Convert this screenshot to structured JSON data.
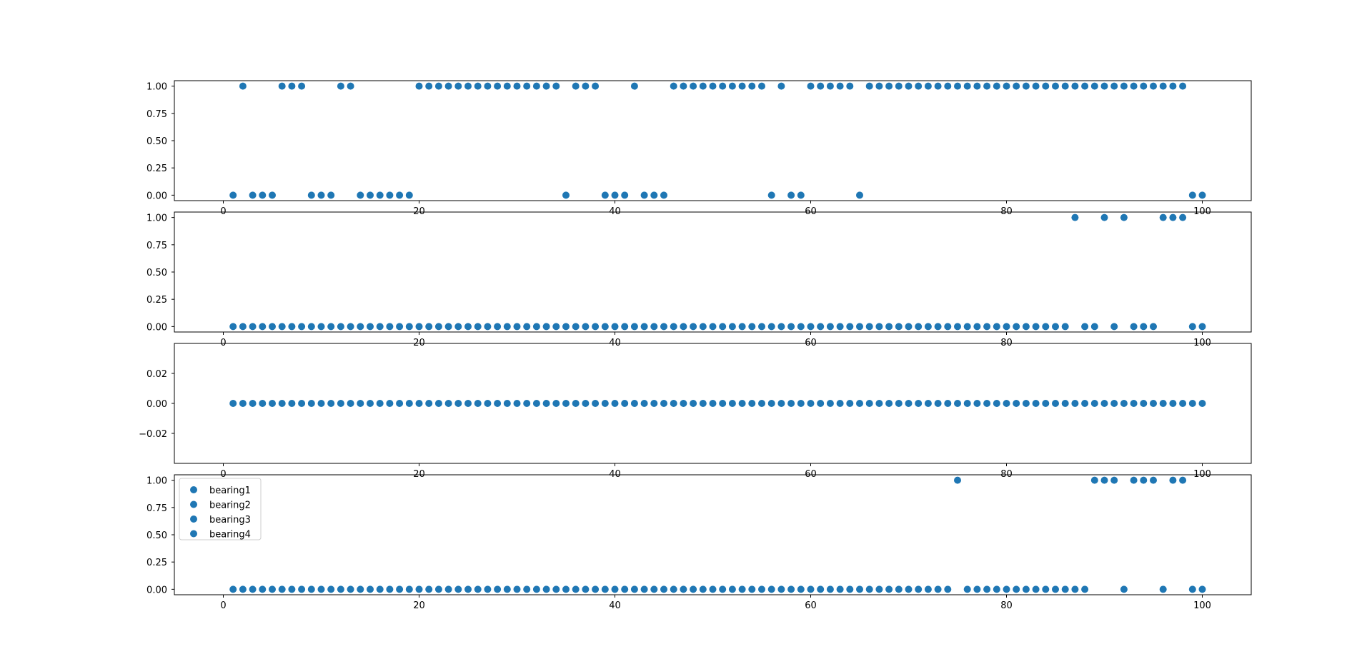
{
  "figure": {
    "background": "#ffffff",
    "marker_color": "#1f77b4"
  },
  "legend": {
    "placement": "upper-left of bottom panel",
    "entries": [
      "bearing1",
      "bearing2",
      "bearing3",
      "bearing4"
    ]
  },
  "chart_data": [
    {
      "type": "scatter",
      "title": "",
      "xlabel": "",
      "ylabel": "",
      "xlim": [
        -5,
        105
      ],
      "ylim": [
        -0.05,
        1.05
      ],
      "x_ticks": [
        0,
        20,
        40,
        60,
        80,
        100
      ],
      "x_tick_labels": [
        "0",
        "20",
        "40",
        "60",
        "80",
        "100"
      ],
      "y_ticks": [
        0,
        0.25,
        0.5,
        0.75,
        1
      ],
      "y_tick_labels": [
        "0.00",
        "0.25",
        "0.50",
        "0.75",
        "1.00"
      ],
      "grid": false,
      "series": [
        {
          "name": "bearing1",
          "x": [
            1,
            2,
            3,
            4,
            5,
            6,
            7,
            8,
            9,
            10,
            11,
            12,
            13,
            14,
            15,
            16,
            17,
            18,
            19,
            20,
            21,
            22,
            23,
            24,
            25,
            26,
            27,
            28,
            29,
            30,
            31,
            32,
            33,
            34,
            35,
            36,
            37,
            38,
            39,
            40,
            41,
            42,
            43,
            44,
            45,
            46,
            47,
            48,
            49,
            50,
            51,
            52,
            53,
            54,
            55,
            56,
            57,
            58,
            59,
            60,
            61,
            62,
            63,
            64,
            65,
            66,
            67,
            68,
            69,
            70,
            71,
            72,
            73,
            74,
            75,
            76,
            77,
            78,
            79,
            80,
            81,
            82,
            83,
            84,
            85,
            86,
            87,
            88,
            89,
            90,
            91,
            92,
            93,
            94,
            95,
            96,
            97,
            98,
            99,
            100
          ],
          "y": [
            0,
            1,
            0,
            0,
            0,
            1,
            1,
            1,
            0,
            0,
            0,
            1,
            1,
            0,
            0,
            0,
            0,
            0,
            0,
            1,
            1,
            1,
            1,
            1,
            1,
            1,
            1,
            1,
            1,
            1,
            1,
            1,
            1,
            1,
            0,
            1,
            1,
            1,
            0,
            0,
            0,
            1,
            0,
            0,
            0,
            1,
            1,
            1,
            1,
            1,
            1,
            1,
            1,
            1,
            1,
            0,
            1,
            0,
            0,
            1,
            1,
            1,
            1,
            1,
            0,
            1,
            1,
            1,
            1,
            1,
            1,
            1,
            1,
            1,
            1,
            1,
            1,
            1,
            1,
            1,
            1,
            1,
            1,
            1,
            1,
            1,
            1,
            1,
            1,
            1,
            1,
            1,
            1,
            1,
            1,
            1,
            1,
            1,
            0,
            0
          ]
        }
      ]
    },
    {
      "type": "scatter",
      "title": "",
      "xlabel": "",
      "ylabel": "",
      "xlim": [
        -5,
        105
      ],
      "ylim": [
        -0.05,
        1.05
      ],
      "x_ticks": [
        0,
        20,
        40,
        60,
        80,
        100
      ],
      "x_tick_labels": [
        "0",
        "20",
        "40",
        "60",
        "80",
        "100"
      ],
      "y_ticks": [
        0,
        0.25,
        0.5,
        0.75,
        1
      ],
      "y_tick_labels": [
        "0.00",
        "0.25",
        "0.50",
        "0.75",
        "1.00"
      ],
      "grid": false,
      "series": [
        {
          "name": "bearing2",
          "x": [
            1,
            2,
            3,
            4,
            5,
            6,
            7,
            8,
            9,
            10,
            11,
            12,
            13,
            14,
            15,
            16,
            17,
            18,
            19,
            20,
            21,
            22,
            23,
            24,
            25,
            26,
            27,
            28,
            29,
            30,
            31,
            32,
            33,
            34,
            35,
            36,
            37,
            38,
            39,
            40,
            41,
            42,
            43,
            44,
            45,
            46,
            47,
            48,
            49,
            50,
            51,
            52,
            53,
            54,
            55,
            56,
            57,
            58,
            59,
            60,
            61,
            62,
            63,
            64,
            65,
            66,
            67,
            68,
            69,
            70,
            71,
            72,
            73,
            74,
            75,
            76,
            77,
            78,
            79,
            80,
            81,
            82,
            83,
            84,
            85,
            86,
            87,
            88,
            89,
            90,
            91,
            92,
            93,
            94,
            95,
            96,
            97,
            98,
            99,
            100
          ],
          "y": [
            0,
            0,
            0,
            0,
            0,
            0,
            0,
            0,
            0,
            0,
            0,
            0,
            0,
            0,
            0,
            0,
            0,
            0,
            0,
            0,
            0,
            0,
            0,
            0,
            0,
            0,
            0,
            0,
            0,
            0,
            0,
            0,
            0,
            0,
            0,
            0,
            0,
            0,
            0,
            0,
            0,
            0,
            0,
            0,
            0,
            0,
            0,
            0,
            0,
            0,
            0,
            0,
            0,
            0,
            0,
            0,
            0,
            0,
            0,
            0,
            0,
            0,
            0,
            0,
            0,
            0,
            0,
            0,
            0,
            0,
            0,
            0,
            0,
            0,
            0,
            0,
            0,
            0,
            0,
            0,
            0,
            0,
            0,
            0,
            0,
            0,
            1,
            0,
            0,
            1,
            0,
            1,
            0,
            0,
            0,
            1,
            1,
            1,
            0,
            0
          ]
        }
      ]
    },
    {
      "type": "scatter",
      "title": "",
      "xlabel": "",
      "ylabel": "",
      "xlim": [
        -5,
        105
      ],
      "ylim": [
        -0.04,
        0.04
      ],
      "x_ticks": [
        0,
        20,
        40,
        60,
        80,
        100
      ],
      "x_tick_labels": [
        "0",
        "20",
        "40",
        "60",
        "80",
        "100"
      ],
      "y_ticks": [
        -0.02,
        0,
        0.02
      ],
      "y_tick_labels": [
        "−0.02",
        "0.00",
        "0.02"
      ],
      "grid": false,
      "series": [
        {
          "name": "bearing3",
          "x": [
            1,
            2,
            3,
            4,
            5,
            6,
            7,
            8,
            9,
            10,
            11,
            12,
            13,
            14,
            15,
            16,
            17,
            18,
            19,
            20,
            21,
            22,
            23,
            24,
            25,
            26,
            27,
            28,
            29,
            30,
            31,
            32,
            33,
            34,
            35,
            36,
            37,
            38,
            39,
            40,
            41,
            42,
            43,
            44,
            45,
            46,
            47,
            48,
            49,
            50,
            51,
            52,
            53,
            54,
            55,
            56,
            57,
            58,
            59,
            60,
            61,
            62,
            63,
            64,
            65,
            66,
            67,
            68,
            69,
            70,
            71,
            72,
            73,
            74,
            75,
            76,
            77,
            78,
            79,
            80,
            81,
            82,
            83,
            84,
            85,
            86,
            87,
            88,
            89,
            90,
            91,
            92,
            93,
            94,
            95,
            96,
            97,
            98,
            99,
            100
          ],
          "y": [
            0,
            0,
            0,
            0,
            0,
            0,
            0,
            0,
            0,
            0,
            0,
            0,
            0,
            0,
            0,
            0,
            0,
            0,
            0,
            0,
            0,
            0,
            0,
            0,
            0,
            0,
            0,
            0,
            0,
            0,
            0,
            0,
            0,
            0,
            0,
            0,
            0,
            0,
            0,
            0,
            0,
            0,
            0,
            0,
            0,
            0,
            0,
            0,
            0,
            0,
            0,
            0,
            0,
            0,
            0,
            0,
            0,
            0,
            0,
            0,
            0,
            0,
            0,
            0,
            0,
            0,
            0,
            0,
            0,
            0,
            0,
            0,
            0,
            0,
            0,
            0,
            0,
            0,
            0,
            0,
            0,
            0,
            0,
            0,
            0,
            0,
            0,
            0,
            0,
            0,
            0,
            0,
            0,
            0,
            0,
            0,
            0,
            0,
            0,
            0
          ]
        }
      ]
    },
    {
      "type": "scatter",
      "title": "",
      "xlabel": "",
      "ylabel": "",
      "xlim": [
        -5,
        105
      ],
      "ylim": [
        -0.05,
        1.05
      ],
      "x_ticks": [
        0,
        20,
        40,
        60,
        80,
        100
      ],
      "x_tick_labels": [
        "0",
        "20",
        "40",
        "60",
        "80",
        "100"
      ],
      "y_ticks": [
        0,
        0.25,
        0.5,
        0.75,
        1
      ],
      "y_tick_labels": [
        "0.00",
        "0.25",
        "0.50",
        "0.75",
        "1.00"
      ],
      "grid": false,
      "series": [
        {
          "name": "bearing4",
          "x": [
            1,
            2,
            3,
            4,
            5,
            6,
            7,
            8,
            9,
            10,
            11,
            12,
            13,
            14,
            15,
            16,
            17,
            18,
            19,
            20,
            21,
            22,
            23,
            24,
            25,
            26,
            27,
            28,
            29,
            30,
            31,
            32,
            33,
            34,
            35,
            36,
            37,
            38,
            39,
            40,
            41,
            42,
            43,
            44,
            45,
            46,
            47,
            48,
            49,
            50,
            51,
            52,
            53,
            54,
            55,
            56,
            57,
            58,
            59,
            60,
            61,
            62,
            63,
            64,
            65,
            66,
            67,
            68,
            69,
            70,
            71,
            72,
            73,
            74,
            75,
            76,
            77,
            78,
            79,
            80,
            81,
            82,
            83,
            84,
            85,
            86,
            87,
            88,
            89,
            90,
            91,
            92,
            93,
            94,
            95,
            96,
            97,
            98,
            99,
            100
          ],
          "y": [
            0,
            0,
            0,
            0,
            0,
            0,
            0,
            0,
            0,
            0,
            0,
            0,
            0,
            0,
            0,
            0,
            0,
            0,
            0,
            0,
            0,
            0,
            0,
            0,
            0,
            0,
            0,
            0,
            0,
            0,
            0,
            0,
            0,
            0,
            0,
            0,
            0,
            0,
            0,
            0,
            0,
            0,
            0,
            0,
            0,
            0,
            0,
            0,
            0,
            0,
            0,
            0,
            0,
            0,
            0,
            0,
            0,
            0,
            0,
            0,
            0,
            0,
            0,
            0,
            0,
            0,
            0,
            0,
            0,
            0,
            0,
            0,
            0,
            0,
            1,
            0,
            0,
            0,
            0,
            0,
            0,
            0,
            0,
            0,
            0,
            0,
            0,
            0,
            1,
            1,
            1,
            0,
            1,
            1,
            1,
            0,
            1,
            1,
            0,
            0
          ]
        }
      ]
    }
  ]
}
